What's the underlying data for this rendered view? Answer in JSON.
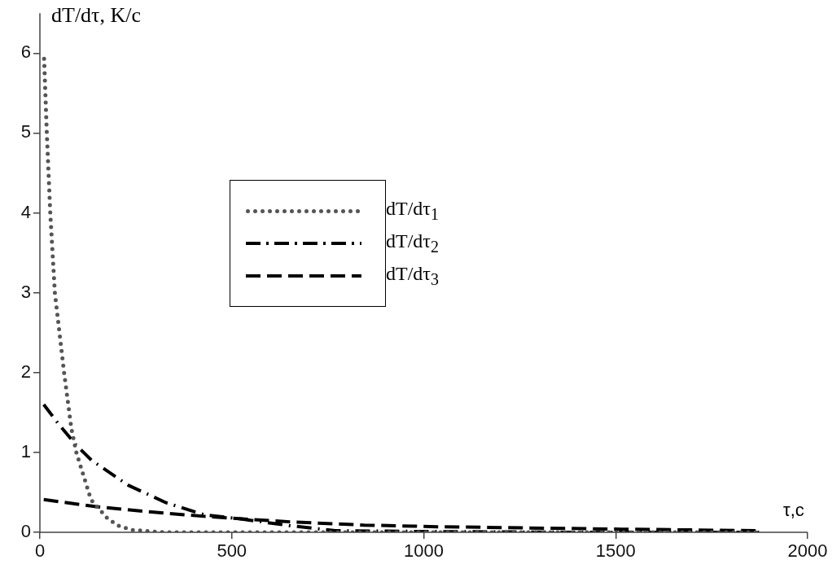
{
  "chart_data": {
    "type": "line",
    "xlabel": "τ,c",
    "ylabel": "dT/dτ, K/c",
    "xlim": [
      0,
      2000
    ],
    "xticks": [
      0,
      500,
      1000,
      1500,
      2000
    ],
    "ylim": [
      0,
      6.5
    ],
    "yticks": [
      0,
      1,
      2,
      3,
      4,
      5,
      6
    ],
    "grid": false,
    "legend": "top",
    "marker": "none",
    "series": [
      {
        "name": "dT/dτ$_{1}$",
        "color": "#555555",
        "line_style": "dotted",
        "x": [
          11,
          18,
          27,
          39,
          63,
          82,
          95,
          133,
          177,
          206,
          238,
          325,
          600,
          1000,
          1400,
          1880
        ],
        "values": [
          5.93,
          5,
          4,
          3,
          2,
          1.3,
          1,
          0.41,
          0.17,
          0.08,
          0.03,
          0,
          0,
          0,
          0,
          0
        ]
      },
      {
        "name": "dT/dτ$_{2}$",
        "color": "#000000",
        "line_style": "dashdot",
        "x": [
          10,
          48,
          93,
          135,
          230,
          329,
          428,
          519,
          656,
          770,
          1000,
          1400,
          1880
        ],
        "values": [
          1.6,
          1.36,
          1.1,
          0.9,
          0.59,
          0.37,
          0.22,
          0.17,
          0.08,
          0.02,
          0.01,
          0,
          0
        ]
      },
      {
        "name": "dT/dτ$_{3}$",
        "color": "#000000",
        "line_style": "dashed",
        "x": [
          10,
          147,
          276,
          428,
          519,
          656,
          845,
          1036,
          1500,
          1880
        ],
        "values": [
          0.41,
          0.32,
          0.26,
          0.2,
          0.17,
          0.13,
          0.09,
          0.07,
          0.04,
          0.02
        ]
      }
    ]
  }
}
